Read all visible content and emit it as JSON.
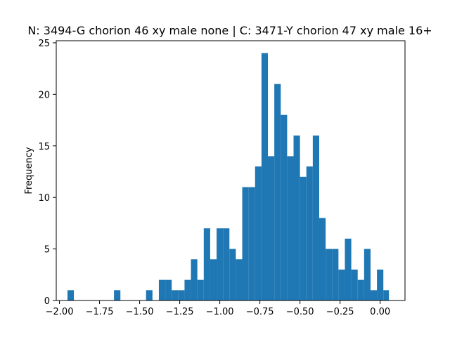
{
  "chart_data": {
    "type": "bar",
    "title": "N: 3494-G chorion 46 xy male none | C: 3471-Y chorion 47 xy male 16+",
    "xlabel": "",
    "ylabel": "Frequency",
    "xlim": [
      -2.02,
      0.155
    ],
    "ylim": [
      0,
      25.2
    ],
    "xticks": [
      -2.0,
      -1.75,
      -1.5,
      -1.25,
      -1.0,
      -0.75,
      -0.5,
      -0.25,
      0.0
    ],
    "xtick_labels": [
      "−2.00",
      "−1.75",
      "−1.50",
      "−1.25",
      "−1.00",
      "−0.75",
      "−0.50",
      "−0.25",
      "0.00"
    ],
    "yticks": [
      0,
      5,
      10,
      15,
      20,
      25
    ],
    "ytick_labels": [
      "0",
      "5",
      "10",
      "15",
      "20",
      "25"
    ],
    "grid": false,
    "series": [
      {
        "color": "#1f77b4",
        "bins": [
          [
            -1.95,
            -1.91,
            1
          ],
          [
            -1.66,
            -1.62,
            1
          ],
          [
            -1.46,
            -1.42,
            1
          ],
          [
            -1.38,
            -1.34,
            2
          ],
          [
            -1.34,
            -1.3,
            2
          ],
          [
            -1.3,
            -1.26,
            1
          ],
          [
            -1.26,
            -1.22,
            1
          ],
          [
            -1.22,
            -1.18,
            2
          ],
          [
            -1.18,
            -1.14,
            4
          ],
          [
            -1.14,
            -1.1,
            2
          ],
          [
            -1.1,
            -1.06,
            7
          ],
          [
            -1.06,
            -1.02,
            4
          ],
          [
            -1.02,
            -0.98,
            7
          ],
          [
            -0.98,
            -0.94,
            7
          ],
          [
            -0.94,
            -0.9,
            5
          ],
          [
            -0.9,
            -0.86,
            4
          ],
          [
            -0.86,
            -0.82,
            11
          ],
          [
            -0.82,
            -0.78,
            11
          ],
          [
            -0.78,
            -0.74,
            13
          ],
          [
            -0.74,
            -0.7,
            24
          ],
          [
            -0.7,
            -0.66,
            14
          ],
          [
            -0.66,
            -0.62,
            21
          ],
          [
            -0.62,
            -0.58,
            18
          ],
          [
            -0.58,
            -0.54,
            14
          ],
          [
            -0.54,
            -0.5,
            16
          ],
          [
            -0.5,
            -0.46,
            12
          ],
          [
            -0.46,
            -0.42,
            13
          ],
          [
            -0.42,
            -0.38,
            16
          ],
          [
            -0.38,
            -0.34,
            8
          ],
          [
            -0.34,
            -0.3,
            5
          ],
          [
            -0.3,
            -0.26,
            5
          ],
          [
            -0.26,
            -0.22,
            3
          ],
          [
            -0.22,
            -0.18,
            6
          ],
          [
            -0.18,
            -0.14,
            3
          ],
          [
            -0.14,
            -0.1,
            2
          ],
          [
            -0.1,
            -0.06,
            5
          ],
          [
            -0.06,
            -0.02,
            1
          ],
          [
            -0.02,
            0.02,
            3
          ],
          [
            0.02,
            0.055,
            1
          ]
        ]
      }
    ]
  }
}
